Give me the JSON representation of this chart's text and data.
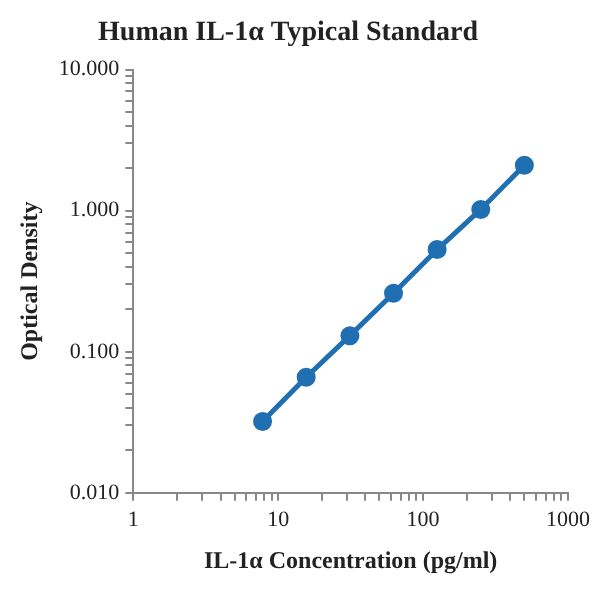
{
  "chart_data": {
    "type": "line",
    "title": "Human IL-1α Typical Standard",
    "xlabel": "IL-1α Concentration (pg/ml)",
    "ylabel": "Optical Density",
    "x": [
      7.8,
      15.6,
      31.25,
      62.5,
      125,
      250,
      500
    ],
    "series": [
      {
        "color": "#1f6fb2",
        "values": [
          0.032,
          0.066,
          0.13,
          0.26,
          0.53,
          1.02,
          2.1
        ]
      }
    ],
    "log": "xy",
    "xlim": [
      1,
      1000
    ],
    "xticks": [
      1,
      10,
      100,
      1000
    ],
    "ylim": [
      0.01,
      10
    ],
    "yticks": [
      {
        "value": 0.01,
        "label": "0.010"
      },
      {
        "value": 0.1,
        "label": "0.100"
      },
      {
        "value": 1,
        "label": "1.000"
      },
      {
        "value": 10,
        "label": "10.000"
      }
    ],
    "grid": false,
    "legend": false,
    "marker": "circle",
    "line_style": "solid"
  }
}
